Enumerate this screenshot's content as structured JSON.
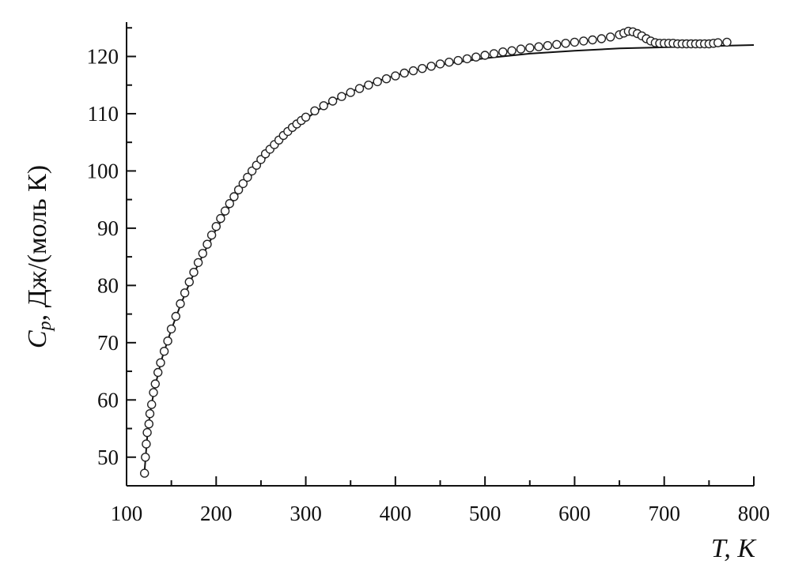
{
  "chart_data": {
    "type": "scatter",
    "xlabel_main": "T",
    "xlabel_unit": ", K",
    "ylabel_main": "C",
    "ylabel_sub": "p",
    "ylabel_unit": ", Дж/(моль К)",
    "xlim": [
      100,
      800
    ],
    "ylim": [
      45,
      126
    ],
    "x_ticks": [
      100,
      200,
      300,
      400,
      500,
      600,
      700,
      800
    ],
    "y_ticks": [
      50,
      60,
      70,
      80,
      90,
      100,
      110,
      120
    ],
    "grid": false,
    "series": [
      {
        "kind": "markers",
        "marker": "open-circle",
        "points": [
          [
            120,
            47.2
          ],
          [
            121,
            50.0
          ],
          [
            122,
            52.3
          ],
          [
            123,
            54.3
          ],
          [
            125,
            55.8
          ],
          [
            126,
            57.6
          ],
          [
            128,
            59.2
          ],
          [
            130,
            61.3
          ],
          [
            132,
            62.8
          ],
          [
            135,
            64.8
          ],
          [
            138,
            66.5
          ],
          [
            142,
            68.5
          ],
          [
            146,
            70.3
          ],
          [
            150,
            72.4
          ],
          [
            155,
            74.6
          ],
          [
            160,
            76.8
          ],
          [
            165,
            78.7
          ],
          [
            170,
            80.6
          ],
          [
            175,
            82.3
          ],
          [
            180,
            84.0
          ],
          [
            185,
            85.6
          ],
          [
            190,
            87.2
          ],
          [
            195,
            88.8
          ],
          [
            200,
            90.3
          ],
          [
            205,
            91.7
          ],
          [
            210,
            93.0
          ],
          [
            215,
            94.3
          ],
          [
            220,
            95.5
          ],
          [
            225,
            96.7
          ],
          [
            230,
            97.8
          ],
          [
            235,
            98.9
          ],
          [
            240,
            100.0
          ],
          [
            245,
            101.0
          ],
          [
            250,
            102.0
          ],
          [
            255,
            103.0
          ],
          [
            260,
            103.8
          ],
          [
            265,
            104.6
          ],
          [
            270,
            105.4
          ],
          [
            275,
            106.2
          ],
          [
            280,
            106.9
          ],
          [
            285,
            107.6
          ],
          [
            290,
            108.2
          ],
          [
            295,
            108.8
          ],
          [
            300,
            109.4
          ],
          [
            310,
            110.5
          ],
          [
            320,
            111.4
          ],
          [
            330,
            112.2
          ],
          [
            340,
            113.0
          ],
          [
            350,
            113.7
          ],
          [
            360,
            114.4
          ],
          [
            370,
            115.0
          ],
          [
            380,
            115.6
          ],
          [
            390,
            116.1
          ],
          [
            400,
            116.6
          ],
          [
            410,
            117.1
          ],
          [
            420,
            117.5
          ],
          [
            430,
            117.9
          ],
          [
            440,
            118.3
          ],
          [
            450,
            118.7
          ],
          [
            460,
            119.0
          ],
          [
            470,
            119.3
          ],
          [
            480,
            119.6
          ],
          [
            490,
            119.9
          ],
          [
            500,
            120.2
          ],
          [
            510,
            120.5
          ],
          [
            520,
            120.8
          ],
          [
            530,
            121.0
          ],
          [
            540,
            121.3
          ],
          [
            550,
            121.5
          ],
          [
            560,
            121.7
          ],
          [
            570,
            121.9
          ],
          [
            580,
            122.1
          ],
          [
            590,
            122.3
          ],
          [
            600,
            122.5
          ],
          [
            610,
            122.7
          ],
          [
            620,
            122.9
          ],
          [
            630,
            123.1
          ],
          [
            640,
            123.4
          ],
          [
            650,
            123.8
          ],
          [
            655,
            124.1
          ],
          [
            660,
            124.4
          ],
          [
            665,
            124.3
          ],
          [
            670,
            124.0
          ],
          [
            675,
            123.6
          ],
          [
            680,
            123.1
          ],
          [
            685,
            122.7
          ],
          [
            690,
            122.4
          ],
          [
            695,
            122.3
          ],
          [
            700,
            122.3
          ],
          [
            705,
            122.3
          ],
          [
            710,
            122.3
          ],
          [
            715,
            122.2
          ],
          [
            720,
            122.2
          ],
          [
            725,
            122.2
          ],
          [
            730,
            122.2
          ],
          [
            735,
            122.2
          ],
          [
            740,
            122.2
          ],
          [
            745,
            122.2
          ],
          [
            750,
            122.2
          ],
          [
            755,
            122.3
          ],
          [
            760,
            122.4
          ],
          [
            770,
            122.5
          ]
        ]
      },
      {
        "kind": "line",
        "points": [
          [
            120,
            47.5
          ],
          [
            123,
            53.5
          ],
          [
            126,
            57.5
          ],
          [
            130,
            61.0
          ],
          [
            135,
            64.5
          ],
          [
            140,
            67.5
          ],
          [
            150,
            72.3
          ],
          [
            160,
            76.5
          ],
          [
            170,
            80.3
          ],
          [
            180,
            83.7
          ],
          [
            190,
            86.8
          ],
          [
            200,
            89.8
          ],
          [
            210,
            92.5
          ],
          [
            220,
            95.0
          ],
          [
            230,
            97.3
          ],
          [
            240,
            99.4
          ],
          [
            250,
            101.4
          ],
          [
            260,
            103.2
          ],
          [
            280,
            106.4
          ],
          [
            300,
            109.1
          ],
          [
            320,
            111.3
          ],
          [
            340,
            113.0
          ],
          [
            360,
            114.5
          ],
          [
            380,
            115.7
          ],
          [
            400,
            116.7
          ],
          [
            430,
            117.9
          ],
          [
            460,
            118.8
          ],
          [
            500,
            119.7
          ],
          [
            550,
            120.5
          ],
          [
            600,
            121.0
          ],
          [
            650,
            121.4
          ],
          [
            700,
            121.6
          ],
          [
            750,
            121.8
          ],
          [
            800,
            122.0
          ]
        ]
      }
    ]
  }
}
